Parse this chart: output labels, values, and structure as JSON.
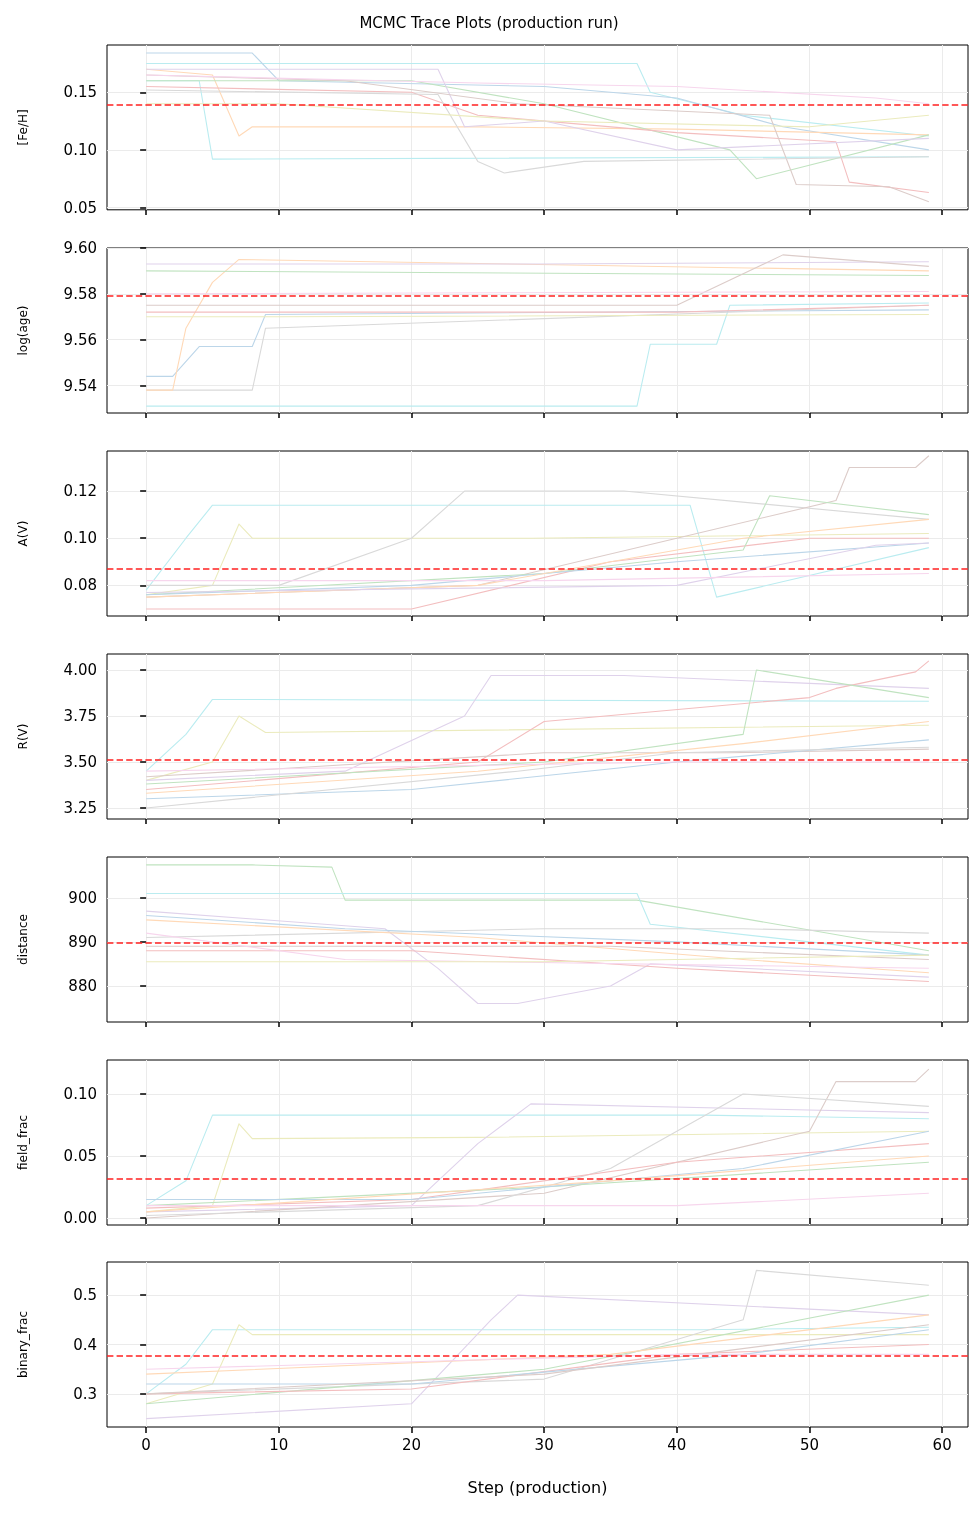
{
  "chart_data": [
    {
      "type": "line",
      "title": "MCMC Trace Plots (production run)",
      "ylabel": "[Fe/H]",
      "xlim": [
        -2.95,
        61.95
      ],
      "xticks": [
        0,
        10,
        20,
        30,
        40,
        50,
        60
      ],
      "ylim": [
        0.048,
        0.191
      ],
      "yticks": [
        {
          "value": 0.05,
          "label": "0.05"
        },
        {
          "value": 0.1,
          "label": "0.10"
        },
        {
          "value": 0.15,
          "label": "0.15"
        }
      ],
      "grid": true,
      "marker": "none",
      "tick_labels": "y",
      "ref_lines": [
        {
          "axis": "y",
          "value": 0.139,
          "color": "#ff2020",
          "line_style": "dashed"
        }
      ],
      "series": [
        {
          "color": "#baecf0",
          "x": [
            0,
            4,
            5,
            59
          ],
          "values": [
            0.16,
            0.16,
            0.092,
            0.094
          ]
        },
        {
          "color": "#baecf0",
          "x": [
            0,
            37,
            38,
            45,
            59
          ],
          "values": [
            0.175,
            0.175,
            0.15,
            0.13,
            0.112
          ]
        },
        {
          "color": "#bcd6e9",
          "x": [
            0,
            8,
            10,
            30,
            40,
            48,
            59
          ],
          "values": [
            0.184,
            0.184,
            0.16,
            0.155,
            0.145,
            0.12,
            0.1
          ]
        },
        {
          "color": "#ffd9b7",
          "x": [
            0,
            5,
            7,
            8,
            25,
            40,
            59
          ],
          "values": [
            0.17,
            0.165,
            0.112,
            0.12,
            0.12,
            0.118,
            0.113
          ]
        },
        {
          "color": "#c0e3c0",
          "x": [
            0,
            20,
            30,
            44,
            46,
            59
          ],
          "values": [
            0.16,
            0.16,
            0.14,
            0.1,
            0.075,
            0.113
          ]
        },
        {
          "color": "#f3bebf",
          "x": [
            0,
            20,
            25,
            40,
            52,
            53,
            59
          ],
          "values": [
            0.155,
            0.15,
            0.13,
            0.115,
            0.107,
            0.072,
            0.063
          ]
        },
        {
          "color": "#dfd2eb",
          "x": [
            0,
            22,
            24,
            30,
            40,
            59
          ],
          "values": [
            0.17,
            0.17,
            0.12,
            0.125,
            0.1,
            0.11
          ]
        },
        {
          "color": "#dcccc9",
          "x": [
            0,
            15,
            28,
            47,
            49,
            56,
            59
          ],
          "values": [
            0.165,
            0.16,
            0.14,
            0.13,
            0.07,
            0.068,
            0.055
          ]
        },
        {
          "color": "#f7d6ed",
          "x": [
            0,
            25,
            40,
            55,
            59
          ],
          "values": [
            0.165,
            0.158,
            0.155,
            0.145,
            0.14
          ]
        },
        {
          "color": "#d9d9d9",
          "x": [
            0,
            22,
            25,
            27,
            33,
            59
          ],
          "values": [
            0.152,
            0.148,
            0.09,
            0.08,
            0.09,
            0.094
          ]
        },
        {
          "color": "#ebebbd",
          "x": [
            0,
            10,
            30,
            50,
            59
          ],
          "values": [
            0.14,
            0.14,
            0.125,
            0.12,
            0.13
          ]
        }
      ]
    },
    {
      "type": "line",
      "ylabel": "log(age)",
      "xlim": [
        -2.95,
        61.95
      ],
      "xticks": [
        0,
        10,
        20,
        30,
        40,
        50,
        60
      ],
      "ylim": [
        9.528,
        9.6
      ],
      "yticks": [
        9.54,
        9.56,
        9.58,
        {
          "value": 9.6,
          "label": "9.60"
        }
      ],
      "grid": true,
      "marker": "none",
      "tick_labels": "y",
      "ref_lines": [
        {
          "axis": "y",
          "value": 9.579,
          "color": "#ff2020",
          "line_style": "dashed"
        }
      ],
      "series": [
        {
          "color": "#baecf0",
          "x": [
            0,
            37,
            38,
            43,
            44,
            59
          ],
          "values": [
            9.531,
            9.531,
            9.558,
            9.558,
            9.575,
            9.576
          ]
        },
        {
          "color": "#bcd6e9",
          "x": [
            0,
            2,
            4,
            8,
            9,
            59
          ],
          "values": [
            9.544,
            9.544,
            9.557,
            9.557,
            9.571,
            9.573
          ]
        },
        {
          "color": "#d9d9d9",
          "x": [
            0,
            8,
            9,
            59
          ],
          "values": [
            9.538,
            9.538,
            9.565,
            9.575
          ]
        },
        {
          "color": "#ffd9b7",
          "x": [
            0,
            2,
            3,
            5,
            7,
            59
          ],
          "values": [
            9.538,
            9.538,
            9.565,
            9.585,
            9.595,
            9.59
          ]
        },
        {
          "color": "#c0e3c0",
          "x": [
            0,
            59
          ],
          "values": [
            9.59,
            9.588
          ]
        },
        {
          "color": "#f3bebf",
          "x": [
            0,
            20,
            40,
            59
          ],
          "values": [
            9.572,
            9.572,
            9.572,
            9.575
          ]
        },
        {
          "color": "#dfd2eb",
          "x": [
            0,
            30,
            59
          ],
          "values": [
            9.593,
            9.593,
            9.594
          ]
        },
        {
          "color": "#dcccc9",
          "x": [
            0,
            40,
            48,
            59
          ],
          "values": [
            9.575,
            9.575,
            9.597,
            9.592
          ]
        },
        {
          "color": "#f7d6ed",
          "x": [
            0,
            59
          ],
          "values": [
            9.58,
            9.581
          ]
        },
        {
          "color": "#ebebbd",
          "x": [
            0,
            10,
            59
          ],
          "values": [
            9.57,
            9.57,
            9.571
          ]
        }
      ]
    },
    {
      "type": "line",
      "ylabel": "A(V)",
      "xlim": [
        -2.95,
        61.95
      ],
      "xticks": [
        0,
        10,
        20,
        30,
        40,
        50,
        60
      ],
      "ylim": [
        0.067,
        0.137
      ],
      "yticks": [
        {
          "value": 0.08,
          "label": "0.08"
        },
        {
          "value": 0.1,
          "label": "0.10"
        },
        {
          "value": 0.12,
          "label": "0.12"
        }
      ],
      "grid": true,
      "marker": "none",
      "tick_labels": "y",
      "ref_lines": [
        {
          "axis": "y",
          "value": 0.087,
          "color": "#ff2020",
          "line_style": "dashed"
        }
      ],
      "series": [
        {
          "color": "#baecf0",
          "x": [
            0,
            3,
            5,
            41,
            43,
            59
          ],
          "values": [
            0.078,
            0.1,
            0.114,
            0.114,
            0.075,
            0.096
          ]
        },
        {
          "color": "#ebebbd",
          "x": [
            0,
            5,
            7,
            8,
            29,
            59
          ],
          "values": [
            0.076,
            0.08,
            0.106,
            0.1,
            0.1,
            0.102
          ]
        },
        {
          "color": "#d9d9d9",
          "x": [
            0,
            10,
            20,
            24,
            36,
            59
          ],
          "values": [
            0.08,
            0.08,
            0.1,
            0.12,
            0.12,
            0.108
          ]
        },
        {
          "color": "#dcccc9",
          "x": [
            0,
            25,
            40,
            52,
            53,
            58,
            59
          ],
          "values": [
            0.075,
            0.08,
            0.1,
            0.116,
            0.13,
            0.13,
            0.135
          ]
        },
        {
          "color": "#f3bebf",
          "x": [
            0,
            20,
            35,
            50,
            59
          ],
          "values": [
            0.07,
            0.07,
            0.09,
            0.1,
            0.1
          ]
        },
        {
          "color": "#c0e3c0",
          "x": [
            0,
            30,
            45,
            47,
            59
          ],
          "values": [
            0.076,
            0.085,
            0.095,
            0.118,
            0.11
          ]
        },
        {
          "color": "#bcd6e9",
          "x": [
            0,
            20,
            40,
            59
          ],
          "values": [
            0.076,
            0.08,
            0.09,
            0.098
          ]
        },
        {
          "color": "#ffd9b7",
          "x": [
            0,
            25,
            45,
            59
          ],
          "values": [
            0.075,
            0.08,
            0.1,
            0.108
          ]
        },
        {
          "color": "#dfd2eb",
          "x": [
            0,
            40,
            55,
            59
          ],
          "values": [
            0.077,
            0.08,
            0.097,
            0.098
          ]
        },
        {
          "color": "#f7d6ed",
          "x": [
            0,
            30,
            59
          ],
          "values": [
            0.082,
            0.082,
            0.085
          ]
        }
      ]
    },
    {
      "type": "line",
      "ylabel": "R(V)",
      "xlim": [
        -2.95,
        61.95
      ],
      "xticks": [
        0,
        10,
        20,
        30,
        40,
        50,
        60
      ],
      "ylim": [
        3.19,
        4.087
      ],
      "yticks": [
        3.25,
        {
          "value": 3.5,
          "label": "3.50"
        },
        3.75,
        {
          "value": 4,
          "label": "4.00"
        }
      ],
      "grid": true,
      "marker": "none",
      "tick_labels": "y",
      "ref_lines": [
        {
          "axis": "y",
          "value": 3.511,
          "color": "#ff2020",
          "line_style": "dashed"
        }
      ],
      "series": [
        {
          "color": "#baecf0",
          "x": [
            0,
            3,
            5,
            59
          ],
          "values": [
            3.45,
            3.65,
            3.84,
            3.83
          ]
        },
        {
          "color": "#ebebbd",
          "x": [
            0,
            5,
            7,
            9,
            59
          ],
          "values": [
            3.4,
            3.5,
            3.75,
            3.66,
            3.7
          ]
        },
        {
          "color": "#dfd2eb",
          "x": [
            0,
            15,
            24,
            26,
            36,
            59
          ],
          "values": [
            3.4,
            3.45,
            3.75,
            3.97,
            3.97,
            3.9
          ]
        },
        {
          "color": "#f3bebf",
          "x": [
            0,
            25,
            30,
            50,
            52,
            58,
            59
          ],
          "values": [
            3.35,
            3.5,
            3.72,
            3.85,
            3.9,
            3.99,
            4.05
          ]
        },
        {
          "color": "#c0e3c0",
          "x": [
            0,
            30,
            45,
            46,
            59
          ],
          "values": [
            3.38,
            3.5,
            3.65,
            4.0,
            3.85
          ]
        },
        {
          "color": "#dcccc9",
          "x": [
            0,
            30,
            44,
            59
          ],
          "values": [
            3.42,
            3.55,
            3.55,
            3.57
          ]
        },
        {
          "color": "#bcd6e9",
          "x": [
            0,
            20,
            40,
            59
          ],
          "values": [
            3.3,
            3.35,
            3.5,
            3.62
          ]
        },
        {
          "color": "#ffd9b7",
          "x": [
            0,
            25,
            45,
            59
          ],
          "values": [
            3.33,
            3.45,
            3.6,
            3.72
          ]
        },
        {
          "color": "#d9d9d9",
          "x": [
            0,
            28,
            40,
            59
          ],
          "values": [
            3.25,
            3.45,
            3.55,
            3.58
          ]
        },
        {
          "color": "#f7d6ed",
          "x": [
            0,
            40,
            59
          ],
          "values": [
            3.45,
            3.5,
            3.5
          ]
        }
      ]
    },
    {
      "type": "line",
      "ylabel": "distance",
      "xlim": [
        -2.95,
        61.95
      ],
      "xticks": [
        0,
        10,
        20,
        30,
        40,
        50,
        60
      ],
      "ylim": [
        871.8,
        909.3
      ],
      "yticks": [
        880,
        890,
        900
      ],
      "grid": true,
      "marker": "none",
      "tick_labels": "y",
      "ref_lines": [
        {
          "axis": "y",
          "value": 889.8,
          "color": "#ff2020",
          "line_style": "dashed"
        }
      ],
      "series": [
        {
          "color": "#c0e3c0",
          "x": [
            0,
            8,
            14,
            15,
            37,
            59
          ],
          "values": [
            907.5,
            907.5,
            907,
            899.5,
            899.5,
            888
          ]
        },
        {
          "color": "#baecf0",
          "x": [
            0,
            37,
            38,
            59
          ],
          "values": [
            901,
            901,
            894,
            887
          ]
        },
        {
          "color": "#dfd2eb",
          "x": [
            0,
            18,
            22,
            25,
            28,
            35,
            38,
            59
          ],
          "values": [
            897,
            893,
            884,
            876,
            876,
            880,
            885,
            882
          ]
        },
        {
          "color": "#d9d9d9",
          "x": [
            0,
            30,
            45,
            59
          ],
          "values": [
            891,
            893,
            893,
            892
          ]
        },
        {
          "color": "#f3bebf",
          "x": [
            0,
            20,
            40,
            59
          ],
          "values": [
            888,
            888,
            884,
            881
          ]
        },
        {
          "color": "#bcd6e9",
          "x": [
            0,
            15,
            40,
            59
          ],
          "values": [
            896,
            893,
            890,
            887
          ]
        },
        {
          "color": "#ffd9b7",
          "x": [
            0,
            25,
            45,
            59
          ],
          "values": [
            895,
            891,
            886,
            883
          ]
        },
        {
          "color": "#dcccc9",
          "x": [
            0,
            35,
            59
          ],
          "values": [
            889,
            889,
            886
          ]
        },
        {
          "color": "#f7d6ed",
          "x": [
            0,
            15,
            59
          ],
          "values": [
            892,
            886,
            884
          ]
        },
        {
          "color": "#ebebbd",
          "x": [
            0,
            30,
            59
          ],
          "values": [
            885.5,
            885.5,
            887
          ]
        }
      ]
    },
    {
      "type": "line",
      "ylabel": "field_frac",
      "xlim": [
        -2.95,
        61.95
      ],
      "xticks": [
        0,
        10,
        20,
        30,
        40,
        50,
        60
      ],
      "ylim": [
        -0.0056,
        0.1274
      ],
      "yticks": [
        {
          "value": 0,
          "label": "0.00"
        },
        {
          "value": 0.05,
          "label": "0.05"
        },
        {
          "value": 0.1,
          "label": "0.10"
        }
      ],
      "grid": true,
      "marker": "none",
      "tick_labels": "y",
      "ref_lines": [
        {
          "axis": "y",
          "value": 0.0315,
          "color": "#ff2020",
          "line_style": "dashed"
        }
      ],
      "series": [
        {
          "color": "#baecf0",
          "x": [
            0,
            3,
            5,
            42,
            59
          ],
          "values": [
            0.01,
            0.03,
            0.083,
            0.083,
            0.08
          ]
        },
        {
          "color": "#ebebbd",
          "x": [
            0,
            5,
            7,
            8,
            25,
            59
          ],
          "values": [
            0.005,
            0.01,
            0.076,
            0.064,
            0.065,
            0.07
          ]
        },
        {
          "color": "#dfd2eb",
          "x": [
            0,
            20,
            25,
            29,
            59
          ],
          "values": [
            0.005,
            0.01,
            0.06,
            0.092,
            0.085
          ]
        },
        {
          "color": "#dcccc9",
          "x": [
            0,
            30,
            50,
            52,
            58,
            59
          ],
          "values": [
            0.0,
            0.02,
            0.07,
            0.11,
            0.11,
            0.12
          ]
        },
        {
          "color": "#d9d9d9",
          "x": [
            0,
            25,
            35,
            45,
            59
          ],
          "values": [
            0.002,
            0.01,
            0.04,
            0.1,
            0.09
          ]
        },
        {
          "color": "#f3bebf",
          "x": [
            0,
            20,
            40,
            59
          ],
          "values": [
            0.008,
            0.015,
            0.045,
            0.06
          ]
        },
        {
          "color": "#c0e3c0",
          "x": [
            0,
            30,
            59
          ],
          "values": [
            0.01,
            0.025,
            0.045
          ]
        },
        {
          "color": "#bcd6e9",
          "x": [
            0,
            20,
            45,
            59
          ],
          "values": [
            0.015,
            0.015,
            0.04,
            0.07
          ]
        },
        {
          "color": "#ffd9b7",
          "x": [
            0,
            35,
            59
          ],
          "values": [
            0.005,
            0.03,
            0.05
          ]
        },
        {
          "color": "#f7d6ed",
          "x": [
            0,
            40,
            59
          ],
          "values": [
            0.01,
            0.01,
            0.02
          ]
        }
      ]
    },
    {
      "type": "line",
      "ylabel": "binary_frac",
      "xlabel": "Step (production)",
      "xlim": [
        -2.95,
        61.95
      ],
      "xticks": [
        0,
        10,
        20,
        30,
        40,
        50,
        60
      ],
      "ylim": [
        0.233,
        0.567
      ],
      "yticks": [
        0.3,
        0.4,
        0.5
      ],
      "grid": true,
      "marker": "none",
      "ref_lines": [
        {
          "axis": "y",
          "value": 0.378,
          "color": "#ff2020",
          "line_style": "dashed"
        }
      ],
      "series": [
        {
          "color": "#baecf0",
          "x": [
            0,
            3,
            5,
            42,
            59
          ],
          "values": [
            0.3,
            0.36,
            0.43,
            0.43,
            0.435
          ]
        },
        {
          "color": "#ebebbd",
          "x": [
            0,
            5,
            7,
            8,
            25,
            59
          ],
          "values": [
            0.28,
            0.32,
            0.44,
            0.42,
            0.42,
            0.42
          ]
        },
        {
          "color": "#dfd2eb",
          "x": [
            0,
            20,
            26,
            28,
            59
          ],
          "values": [
            0.25,
            0.28,
            0.45,
            0.5,
            0.46
          ]
        },
        {
          "color": "#d9d9d9",
          "x": [
            0,
            30,
            45,
            46,
            59
          ],
          "values": [
            0.3,
            0.33,
            0.45,
            0.55,
            0.52
          ]
        },
        {
          "color": "#c0e3c0",
          "x": [
            0,
            30,
            59
          ],
          "values": [
            0.28,
            0.35,
            0.5
          ]
        },
        {
          "color": "#f3bebf",
          "x": [
            0,
            20,
            40,
            59
          ],
          "values": [
            0.3,
            0.31,
            0.38,
            0.4
          ]
        },
        {
          "color": "#bcd6e9",
          "x": [
            0,
            20,
            45,
            59
          ],
          "values": [
            0.32,
            0.32,
            0.38,
            0.43
          ]
        },
        {
          "color": "#ffd9b7",
          "x": [
            0,
            35,
            59
          ],
          "values": [
            0.34,
            0.38,
            0.46
          ]
        },
        {
          "color": "#dcccc9",
          "x": [
            0,
            30,
            59
          ],
          "values": [
            0.3,
            0.34,
            0.44
          ]
        },
        {
          "color": "#f7d6ed",
          "x": [
            0,
            40,
            59
          ],
          "values": [
            0.35,
            0.38,
            0.38
          ]
        }
      ]
    }
  ]
}
